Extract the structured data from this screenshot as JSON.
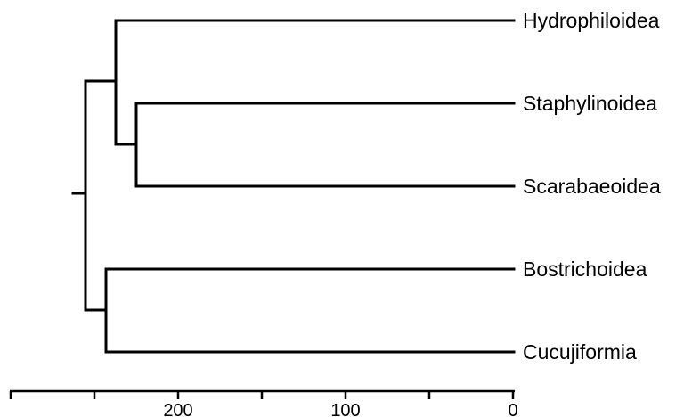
{
  "tree": {
    "taxa": [
      "Hydrophiloidea",
      "Staphylinoidea",
      "Scarabaeoidea",
      "Bostrichoidea",
      "Cucujiformia"
    ],
    "node_ages_ma": {
      "root": 262,
      "hydrophiloidea_staphylinoid_scarab": 237,
      "staphylinoidea_scarabaeoidea": 225,
      "bostrichoidea_cucujiformia": 243
    },
    "topology": "((Hydrophiloidea,(Staphylinoidea,Scarabaeoidea)),(Bostrichoidea,Cucujiformia))"
  },
  "axis": {
    "tick_labels": [
      "200",
      "100",
      "0"
    ],
    "labeled_ticks": [
      200,
      100,
      0
    ],
    "minor_ticks": [
      300,
      250,
      150,
      50
    ],
    "range": [
      305,
      0
    ],
    "direction": "reversed"
  },
  "colors": {
    "lines": "#000000",
    "text": "#000000",
    "background": "#ffffff"
  }
}
